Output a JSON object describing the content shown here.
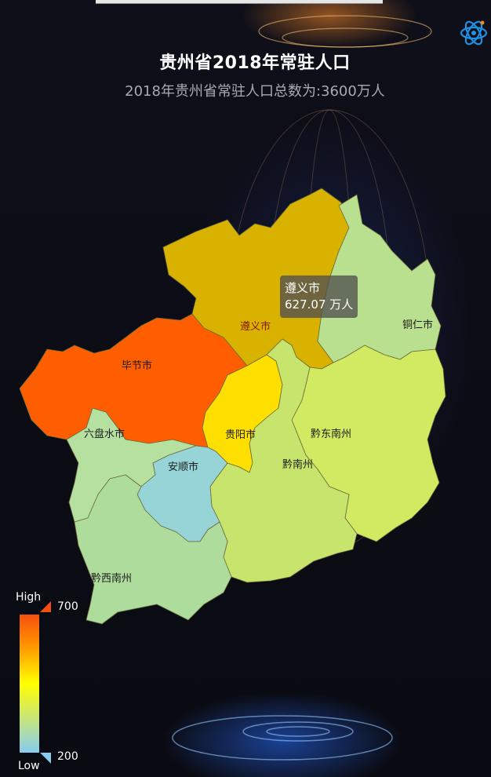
{
  "title": "贵州省2018年常驻人口",
  "subtitle": "2018年贵州省常驻人口总数为:3600万人",
  "tooltip": {
    "region": "遵义市",
    "value_text": "627.07 万人"
  },
  "visual_map": {
    "high_label": "High",
    "low_label": "Low",
    "max": 700,
    "min": 200,
    "max_text": "700",
    "min_text": "200",
    "colors": [
      "#87ccef",
      "#a6d9b8",
      "#cfe86a",
      "#ffff00",
      "#ff8c00",
      "#f5500f"
    ]
  },
  "regions": [
    {
      "name": "遵义市",
      "label": "遵义市",
      "color": "#d9b200",
      "highlighted": true
    },
    {
      "name": "铜仁市",
      "label": "铜仁市",
      "color": "#b9e08e"
    },
    {
      "name": "毕节市",
      "label": "毕节市",
      "color": "#ff5e00"
    },
    {
      "name": "贵阳市",
      "label": "贵阳市",
      "color": "#ffdf00"
    },
    {
      "name": "黔东南州",
      "label": "黔东南州",
      "color": "#d1ea62"
    },
    {
      "name": "黔南州",
      "label": "黔南州",
      "color": "#c7e46c"
    },
    {
      "name": "六盘水市",
      "label": "六盘水市",
      "color": "#b6e0a0"
    },
    {
      "name": "安顺市",
      "label": "安顺市",
      "color": "#96d4d8"
    },
    {
      "name": "黔西南州",
      "label": "黔西南州",
      "color": "#aedc9c"
    }
  ],
  "icons": {
    "logo": "atom-orbit-icon"
  }
}
